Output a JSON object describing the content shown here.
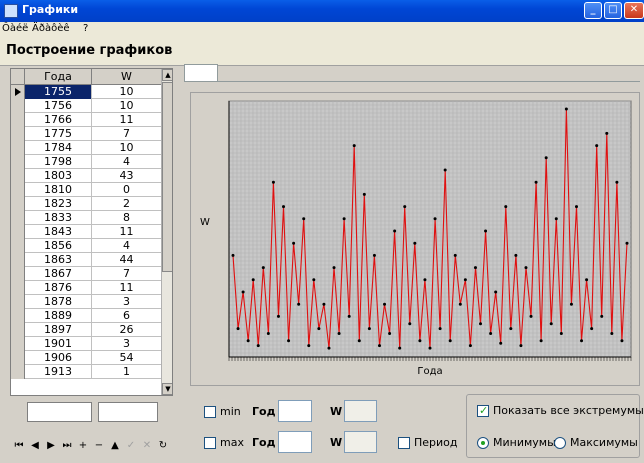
{
  "window": {
    "title": "Графики",
    "buttons": {
      "min": "_",
      "max": "□",
      "close": "✕"
    }
  },
  "menu": [
    "Ôàéë",
    "Äðàôèê",
    "?"
  ],
  "header": {
    "title": "Построение графиков"
  },
  "grid": {
    "columns": [
      "Года",
      "W"
    ],
    "rows": [
      [
        "1755",
        "10"
      ],
      [
        "1756",
        "10"
      ],
      [
        "1766",
        "11"
      ],
      [
        "1775",
        "7"
      ],
      [
        "1784",
        "10"
      ],
      [
        "1798",
        "4"
      ],
      [
        "1803",
        "43"
      ],
      [
        "1810",
        "0"
      ],
      [
        "1823",
        "2"
      ],
      [
        "1833",
        "8"
      ],
      [
        "1843",
        "11"
      ],
      [
        "1856",
        "4"
      ],
      [
        "1863",
        "44"
      ],
      [
        "1867",
        "7"
      ],
      [
        "1876",
        "11"
      ],
      [
        "1878",
        "3"
      ],
      [
        "1889",
        "6"
      ],
      [
        "1897",
        "26"
      ],
      [
        "1901",
        "3"
      ],
      [
        "1906",
        "54"
      ],
      [
        "1913",
        "1"
      ]
    ],
    "selected_row": 0
  },
  "navigator": {
    "buttons": [
      "first",
      "prior",
      "next",
      "last",
      "insert",
      "delete",
      "edit",
      "post",
      "cancel",
      "refresh"
    ],
    "glyphs": [
      "⏮",
      "◀",
      "▶",
      "⏭",
      "+",
      "−",
      "▲",
      "✓",
      "✕",
      "↻"
    ]
  },
  "chart_data": {
    "type": "line",
    "xlabel": "Года",
    "ylabel": "W",
    "y": [
      40,
      10,
      25,
      5,
      30,
      3,
      35,
      8,
      70,
      15,
      60,
      5,
      45,
      20,
      55,
      3,
      30,
      10,
      20,
      2,
      35,
      8,
      55,
      15,
      85,
      5,
      65,
      10,
      40,
      3,
      20,
      8,
      50,
      2,
      60,
      12,
      45,
      5,
      30,
      2,
      55,
      10,
      75,
      5,
      40,
      20,
      30,
      3,
      35,
      12,
      50,
      8,
      25,
      4,
      60,
      10,
      40,
      3,
      35,
      15,
      70,
      5,
      80,
      12,
      55,
      8,
      100,
      20,
      60,
      5,
      30,
      10,
      85,
      15,
      90,
      8,
      70,
      5,
      45
    ]
  },
  "controls": {
    "min_label": "min",
    "max_label": "max",
    "god_label": "Год",
    "w_label": "W",
    "period_label": "Период",
    "show_all_label": "Показать все экстремумы",
    "minima_label": "Минимумы",
    "maxima_label": "Максимумы",
    "min_checked": false,
    "max_checked": false,
    "period_checked": false,
    "show_all_checked": true,
    "mode": "minima"
  }
}
